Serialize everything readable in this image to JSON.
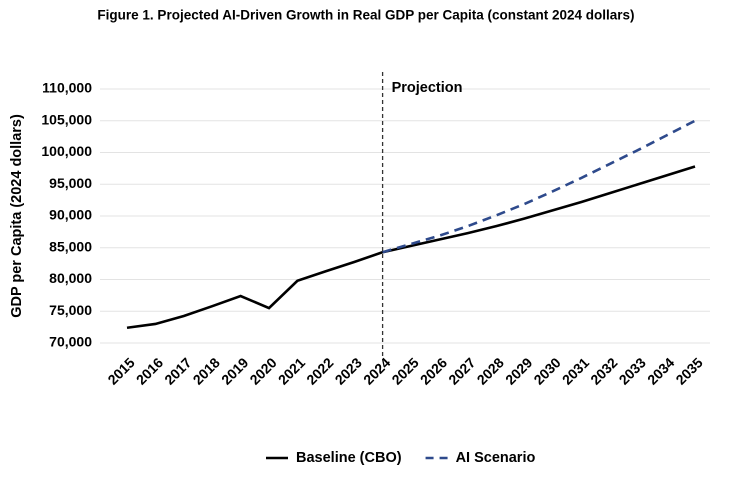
{
  "chart_data": {
    "type": "line",
    "title": "Figure 1. Projected AI-Driven Growth in Real GDP per Capita (constant 2024 dollars)",
    "y_label": "GDP per Capita (2024 dollars)",
    "annotation": "Projection",
    "categories": [
      "2015",
      "2016",
      "2017",
      "2018",
      "2019",
      "2020",
      "2021",
      "2022",
      "2023",
      "2024",
      "2025",
      "2026",
      "2027",
      "2028",
      "2029",
      "2030",
      "2031",
      "2032",
      "2033",
      "2034",
      "2035"
    ],
    "series": [
      {
        "name": "Baseline (CBO)",
        "color": "#000000",
        "dash": false,
        "values": [
          72400,
          73000,
          74250,
          75800,
          77400,
          75500,
          79800,
          81300,
          82750,
          84300,
          85300,
          86300,
          87300,
          88400,
          89600,
          90900,
          92200,
          93600,
          95000,
          96400,
          97800
        ]
      },
      {
        "name": "AI Scenario",
        "color": "#2e4a8c",
        "dash": true,
        "values": [
          null,
          null,
          null,
          null,
          null,
          null,
          null,
          null,
          null,
          84300,
          85600,
          86900,
          88400,
          90100,
          91900,
          93900,
          96000,
          98200,
          100400,
          102700,
          105000
        ]
      }
    ],
    "ylim": [
      70000,
      110000
    ],
    "yticks": [
      {
        "value": 70000,
        "label": "70,000"
      },
      {
        "value": 75000,
        "label": "75,000"
      },
      {
        "value": 80000,
        "label": "80,000"
      },
      {
        "value": 85000,
        "label": "85,000"
      },
      {
        "value": 90000,
        "label": "90,000"
      },
      {
        "value": 95000,
        "label": "95,000"
      },
      {
        "value": 100000,
        "label": "100,000"
      },
      {
        "value": 105000,
        "label": "105,000"
      },
      {
        "value": 110000,
        "label": "110,000"
      }
    ],
    "grid": true,
    "legend": "bottom"
  }
}
